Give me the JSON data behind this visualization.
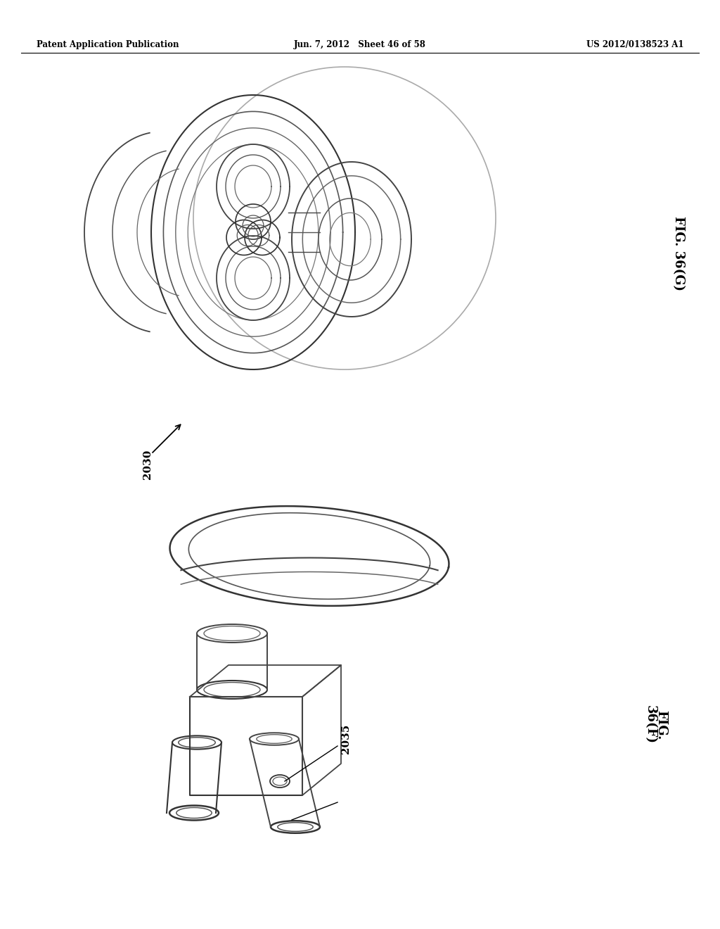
{
  "background_color": "#ffffff",
  "header": {
    "left": "Patent Application Publication",
    "center": "Jun. 7, 2012   Sheet 46 of 58",
    "right": "US 2012/0138523 A1"
  },
  "fig_top_label": "FIG. 36(G)",
  "fig_bottom_label_line1": "FIG.",
  "fig_bottom_label_line2": "36(F)",
  "label_2030": "2030",
  "label_2035": "2035",
  "text_color": "#000000",
  "line_color": "#000000"
}
